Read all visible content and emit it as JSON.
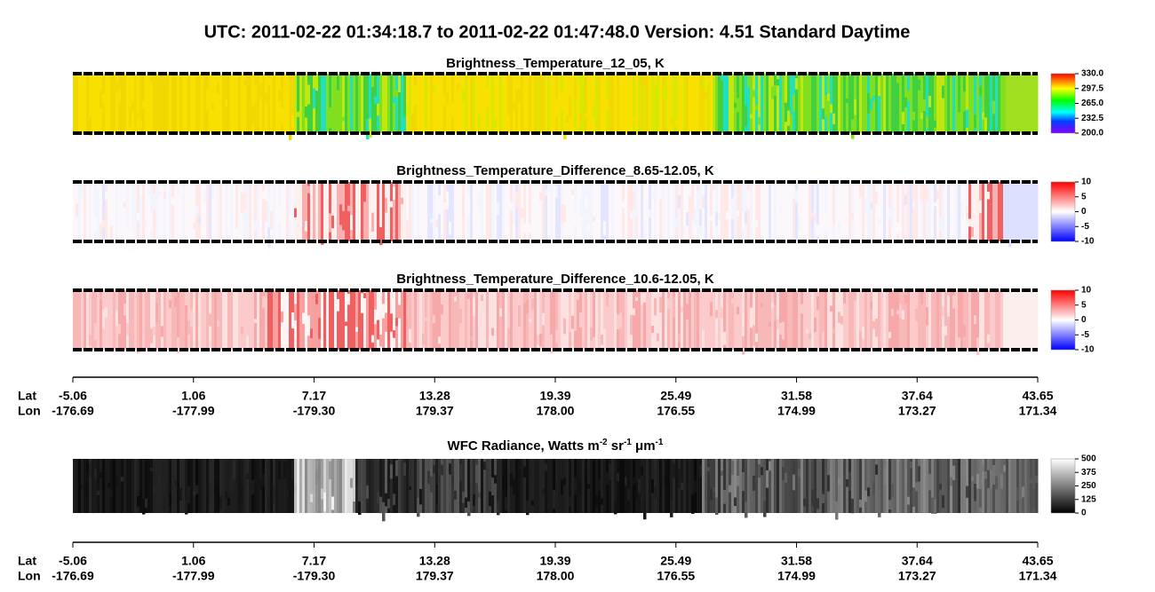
{
  "title": "UTC:  2011-02-22   01:34:18.7  to  2011-02-22   01:47:48.0    Version: 4.51  Standard Daytime",
  "panels": [
    {
      "title": "Brightness_Temperature_12_05, K",
      "colorbar": [
        "200.0",
        "232.5",
        "265.0",
        "297.5",
        "330.0"
      ]
    },
    {
      "title": "Brightness_Temperature_Difference_8.65-12.05, K",
      "colorbar": [
        "-10",
        "-5",
        "0",
        "5",
        "10"
      ]
    },
    {
      "title": "Brightness_Temperature_Difference_10.6-12.05, K",
      "colorbar": [
        "-10",
        "-5",
        "0",
        "5",
        "10"
      ]
    },
    {
      "title_parts": [
        {
          "text": "WFC Radiance, Watts m"
        },
        {
          "sup": "-2"
        },
        {
          "text": " sr"
        },
        {
          "sup": "-1"
        },
        {
          "text": " μm"
        },
        {
          "sup": "-1"
        }
      ],
      "colorbar": [
        "0",
        "125",
        "250",
        "375",
        "500"
      ]
    }
  ],
  "axes": [
    {
      "lat_label": "Lat",
      "lon_label": "Lon",
      "lat": [
        "-5.06",
        "1.06",
        "7.17",
        "13.28",
        "19.39",
        "25.49",
        "31.58",
        "37.64",
        "43.65"
      ],
      "lon": [
        "-176.69",
        "-177.99",
        "-179.30",
        "179.37",
        "178.00",
        "176.55",
        "174.99",
        "173.27",
        "171.34"
      ]
    },
    {
      "lat_label": "Lat",
      "lon_label": "Lon",
      "lat": [
        "-5.06",
        "1.06",
        "7.17",
        "13.28",
        "19.39",
        "25.49",
        "31.58",
        "37.64",
        "43.65"
      ],
      "lon": [
        "-176.69",
        "-177.99",
        "-179.30",
        "179.37",
        "178.00",
        "176.55",
        "174.99",
        "173.27",
        "171.34"
      ]
    }
  ]
}
